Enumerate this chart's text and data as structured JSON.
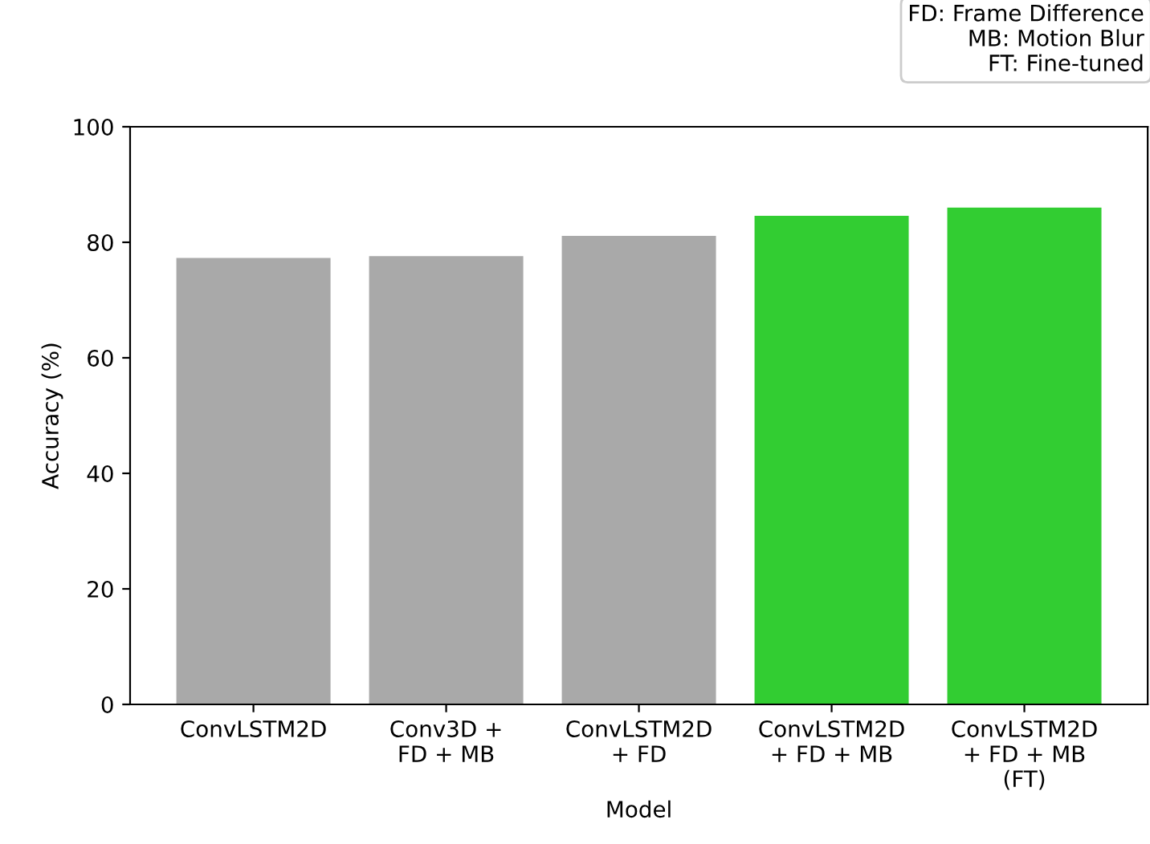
{
  "chart_data": {
    "type": "bar",
    "xlabel": "Model",
    "ylabel": "Accuracy (%)",
    "categories": [
      "ConvLSTM2D",
      "Conv3D +\nFD + MB",
      "ConvLSTM2D\n+ FD",
      "ConvLSTM2D\n+ FD + MB",
      "ConvLSTM2D\n+ FD + MB\n(FT)"
    ],
    "values": [
      77.3,
      77.6,
      81.1,
      84.6,
      86.0
    ],
    "colors": [
      "#a9a9a9",
      "#a9a9a9",
      "#a9a9a9",
      "#32cd32",
      "#32cd32"
    ],
    "ylim": [
      0,
      100
    ],
    "yticks": [
      0,
      20,
      40,
      60,
      80,
      100
    ],
    "grid": false,
    "annotations": [
      "FD: Frame Difference\nMB: Motion Blur\nFT: Fine-tuned"
    ]
  }
}
